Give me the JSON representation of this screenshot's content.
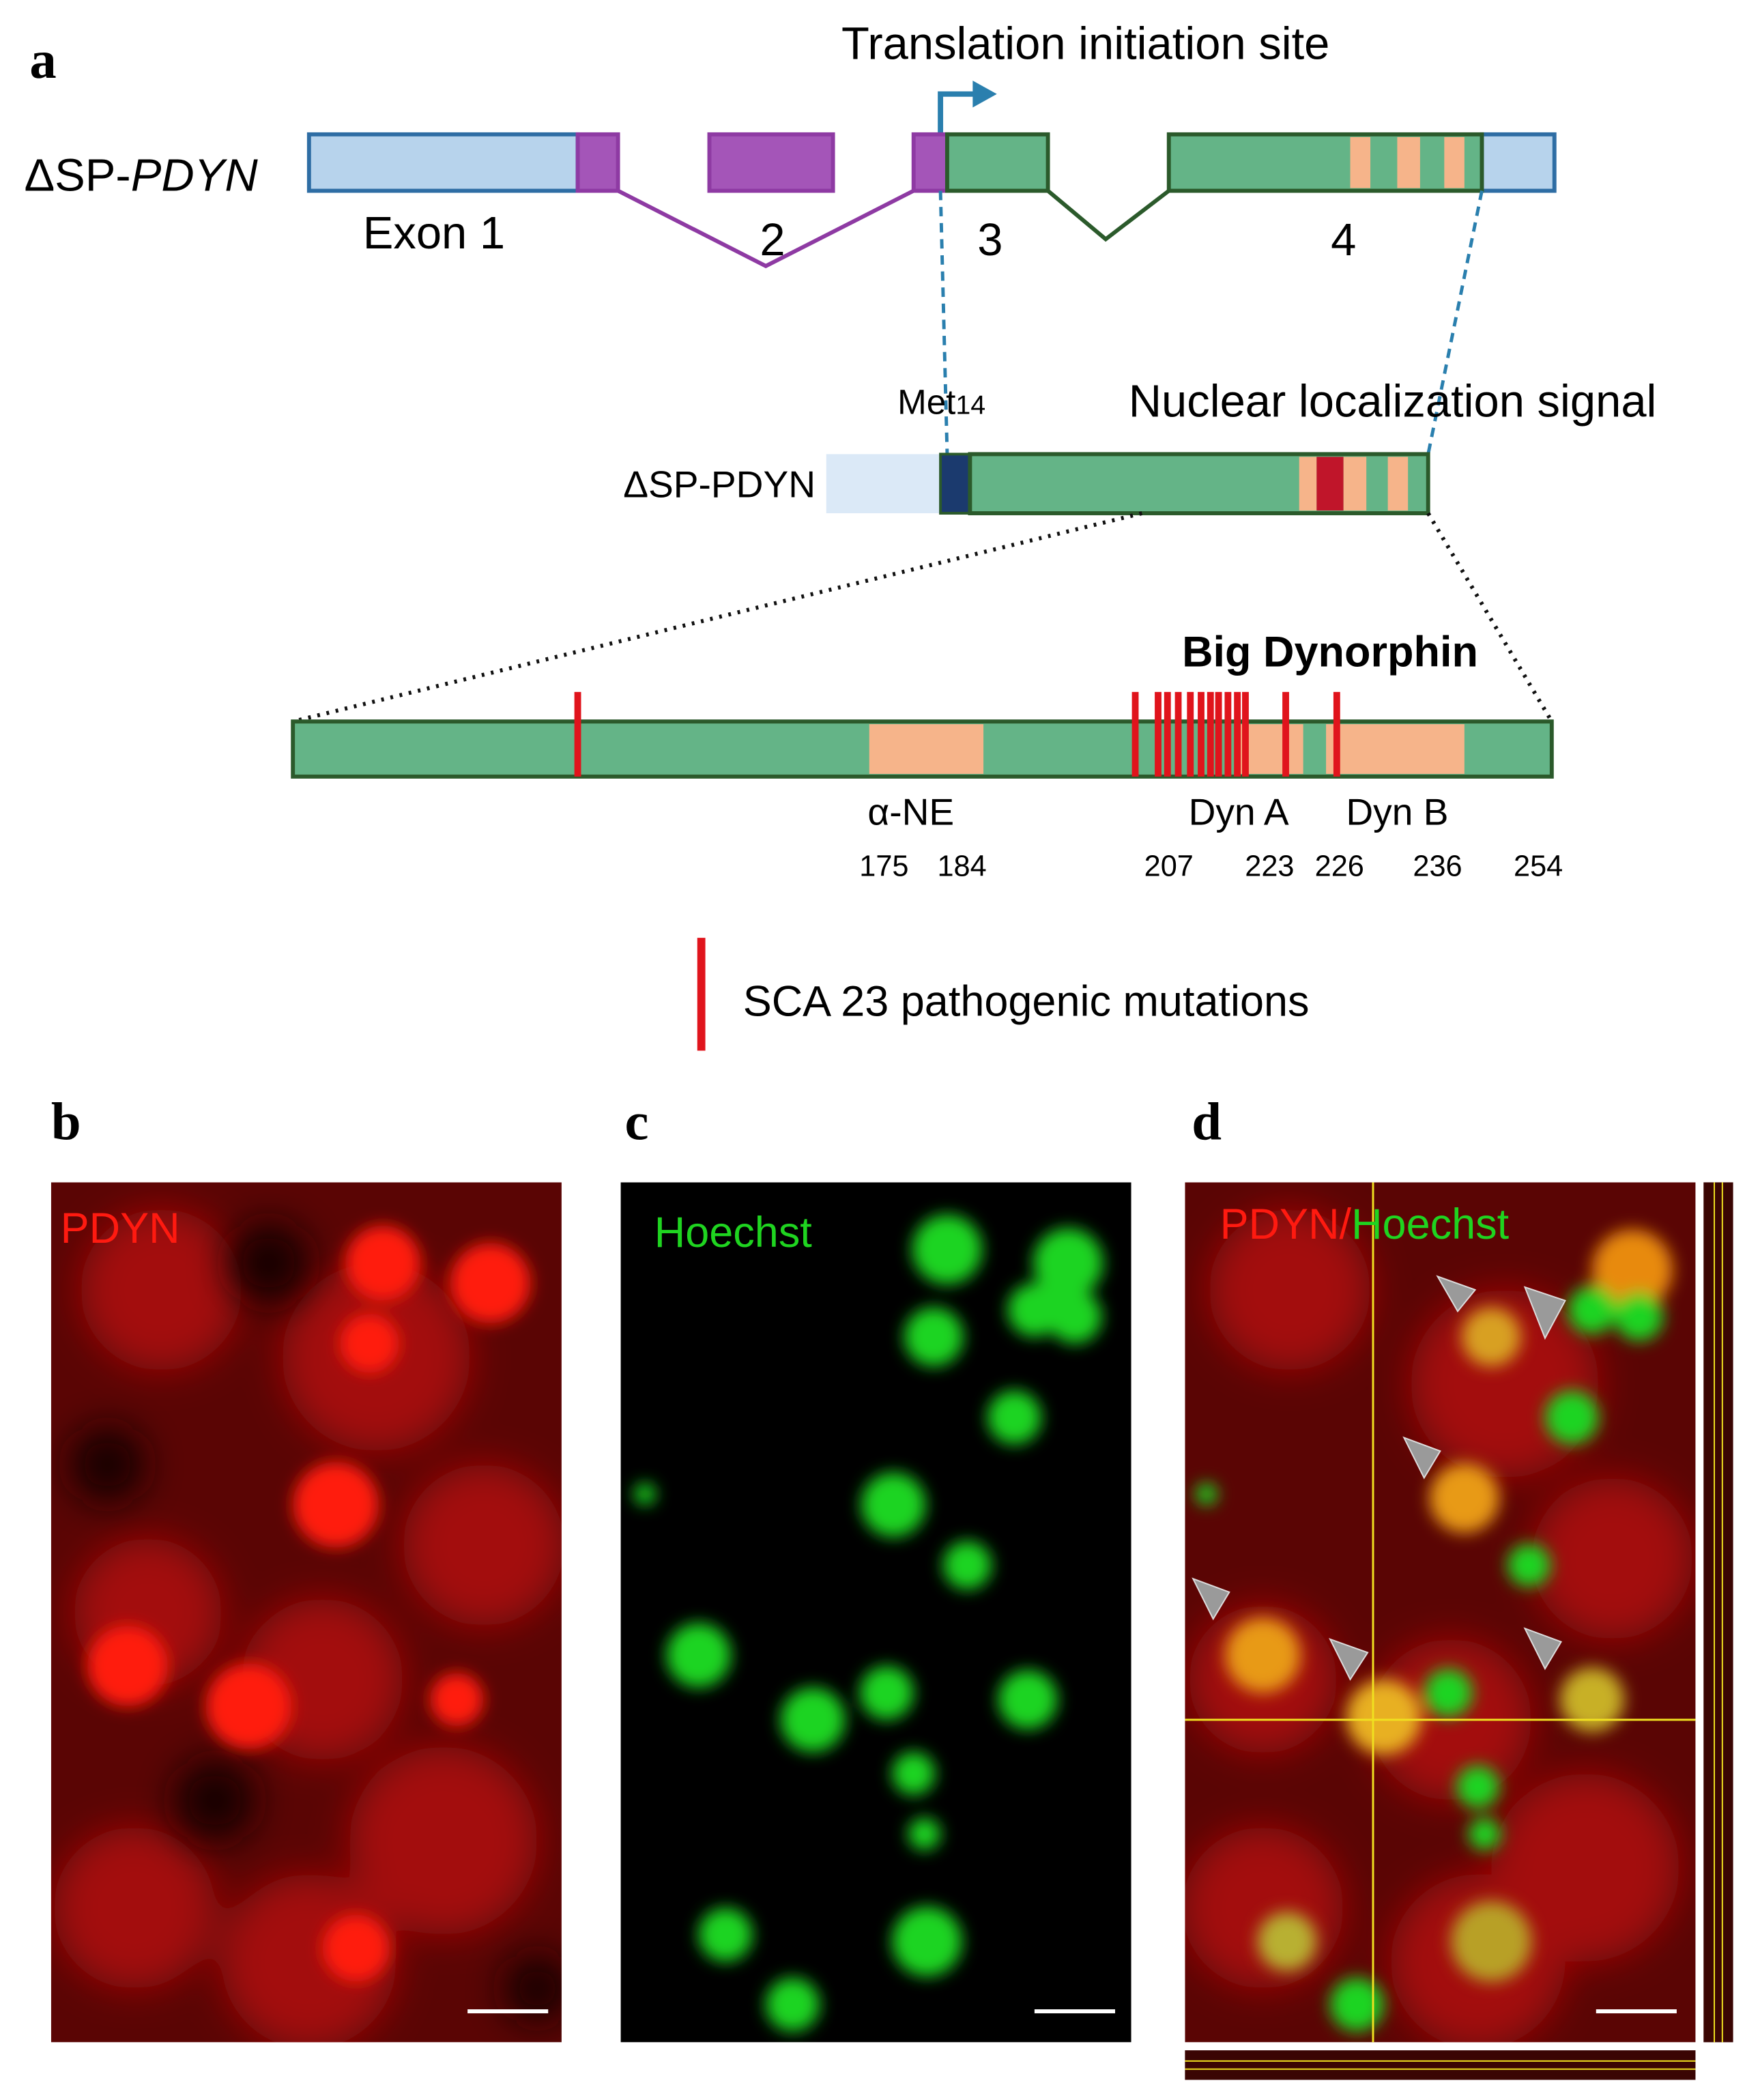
{
  "panels": {
    "a": {
      "label": "a",
      "translation_site": "Translation initiation site",
      "gene": {
        "prefix": "ΔSP-",
        "name": "PDYN"
      },
      "exons": [
        "Exon 1",
        "2",
        "3",
        "4"
      ],
      "met": {
        "text": "Met",
        "number": "14"
      },
      "nls": "Nuclear localization signal",
      "protein": "ΔSP-PDYN",
      "big_dynorphin": "Big Dynorphin",
      "regions": [
        "α-NE",
        "Dyn A",
        "Dyn B"
      ],
      "positions": [
        175,
        184,
        207,
        223,
        226,
        236,
        254
      ],
      "legend": "SCA 23 pathogenic mutations"
    },
    "b": {
      "label": "b",
      "stain": "PDYN"
    },
    "c": {
      "label": "c",
      "stain": "Hoechst"
    },
    "d": {
      "label": "d",
      "stain_red": "PDYN/",
      "stain_green": "Hoechst"
    }
  }
}
